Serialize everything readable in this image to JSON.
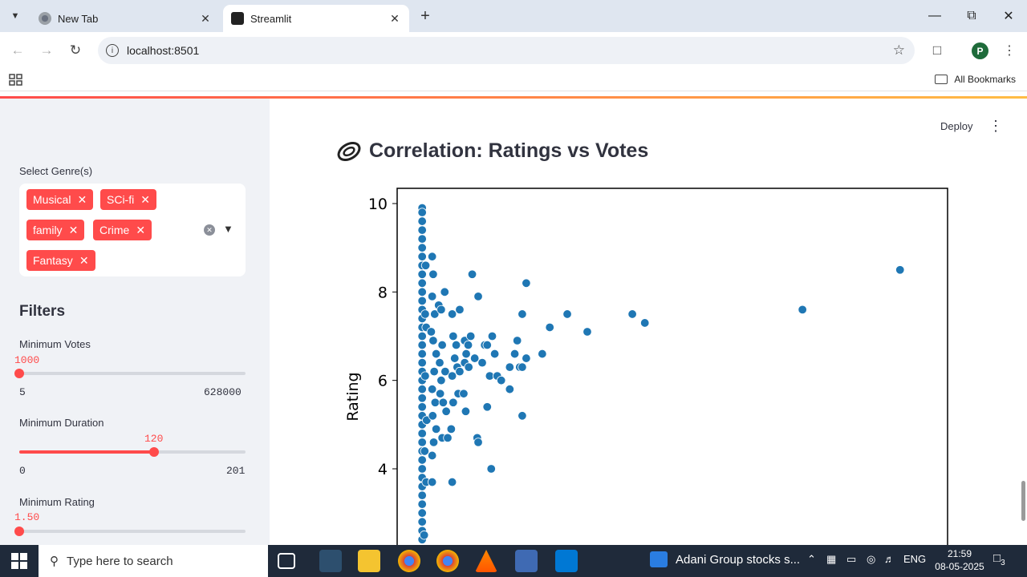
{
  "browser": {
    "tabs": [
      {
        "title": "New Tab",
        "active": false
      },
      {
        "title": "Streamlit",
        "active": true
      }
    ],
    "url": "localhost:8501",
    "profile_initial": "P",
    "bookmarks_label": "All Bookmarks"
  },
  "header": {
    "deploy_label": "Deploy",
    "title": "Correlation: Ratings vs Votes"
  },
  "sidebar": {
    "genre_label": "Select Genre(s)",
    "genres": [
      "Musical",
      "SCi-fi",
      "family",
      "Crime",
      "Fantasy"
    ],
    "filters_heading": "Filters",
    "sliders": [
      {
        "label": "Minimum Votes",
        "value": "1000",
        "min": "5",
        "max": "628000",
        "fraction": 0.0
      },
      {
        "label": "Minimum Duration",
        "value": "120",
        "min": "0",
        "max": "201",
        "fraction": 0.597
      },
      {
        "label": "Minimum Rating",
        "value": "1.50",
        "min": "",
        "max": "",
        "fraction": 0.0
      }
    ]
  },
  "chart_data": {
    "type": "scatter",
    "title": "",
    "xlabel": "",
    "ylabel": "Rating",
    "ylim": [
      2.2,
      10.3
    ],
    "xlim": [
      -0.05,
      1.05
    ],
    "yticks": [
      4,
      6,
      8,
      10
    ],
    "grid": false,
    "color": "#1f77b4",
    "points": [
      [
        0.0,
        9.9
      ],
      [
        0.0,
        9.8
      ],
      [
        0.0,
        9.6
      ],
      [
        0.0,
        9.4
      ],
      [
        0.0,
        9.2
      ],
      [
        0.0,
        9.0
      ],
      [
        0.0,
        8.8
      ],
      [
        0.0,
        8.6
      ],
      [
        0.0,
        8.4
      ],
      [
        0.0,
        8.2
      ],
      [
        0.0,
        8.0
      ],
      [
        0.0,
        7.8
      ],
      [
        0.0,
        7.6
      ],
      [
        0.0,
        7.4
      ],
      [
        0.0,
        7.2
      ],
      [
        0.0,
        7.0
      ],
      [
        0.0,
        6.8
      ],
      [
        0.0,
        6.6
      ],
      [
        0.0,
        6.4
      ],
      [
        0.0,
        6.2
      ],
      [
        0.0,
        6.0
      ],
      [
        0.0,
        5.8
      ],
      [
        0.0,
        5.6
      ],
      [
        0.0,
        5.4
      ],
      [
        0.0,
        5.2
      ],
      [
        0.0,
        5.0
      ],
      [
        0.0,
        4.8
      ],
      [
        0.0,
        4.6
      ],
      [
        0.0,
        4.4
      ],
      [
        0.0,
        4.2
      ],
      [
        0.0,
        4.0
      ],
      [
        0.0,
        3.8
      ],
      [
        0.0,
        3.6
      ],
      [
        0.0,
        3.4
      ],
      [
        0.0,
        3.2
      ],
      [
        0.0,
        3.0
      ],
      [
        0.0,
        2.8
      ],
      [
        0.0,
        2.6
      ],
      [
        0.0,
        2.4
      ],
      [
        0.007,
        8.6
      ],
      [
        0.006,
        7.5
      ],
      [
        0.008,
        7.2
      ],
      [
        0.006,
        6.1
      ],
      [
        0.009,
        5.1
      ],
      [
        0.005,
        4.4
      ],
      [
        0.008,
        3.7
      ],
      [
        0.004,
        2.5
      ],
      [
        0.02,
        8.8
      ],
      [
        0.022,
        8.4
      ],
      [
        0.02,
        7.9
      ],
      [
        0.025,
        7.5
      ],
      [
        0.018,
        7.1
      ],
      [
        0.022,
        6.9
      ],
      [
        0.028,
        6.6
      ],
      [
        0.024,
        6.2
      ],
      [
        0.02,
        5.8
      ],
      [
        0.026,
        5.5
      ],
      [
        0.021,
        5.2
      ],
      [
        0.028,
        4.9
      ],
      [
        0.023,
        4.6
      ],
      [
        0.02,
        4.3
      ],
      [
        0.02,
        3.7
      ],
      [
        0.033,
        7.7
      ],
      [
        0.038,
        7.6
      ],
      [
        0.045,
        8.0
      ],
      [
        0.04,
        6.8
      ],
      [
        0.035,
        6.4
      ],
      [
        0.046,
        6.2
      ],
      [
        0.038,
        6.0
      ],
      [
        0.036,
        5.7
      ],
      [
        0.042,
        5.5
      ],
      [
        0.048,
        5.3
      ],
      [
        0.04,
        4.7
      ],
      [
        0.051,
        4.7
      ],
      [
        0.06,
        7.5
      ],
      [
        0.062,
        7.0
      ],
      [
        0.068,
        6.8
      ],
      [
        0.065,
        6.5
      ],
      [
        0.07,
        6.3
      ],
      [
        0.075,
        6.2
      ],
      [
        0.06,
        6.1
      ],
      [
        0.062,
        5.5
      ],
      [
        0.058,
        4.9
      ],
      [
        0.06,
        3.7
      ],
      [
        0.072,
        5.7
      ],
      [
        0.083,
        5.7
      ],
      [
        0.075,
        7.6
      ],
      [
        0.085,
        6.9
      ],
      [
        0.088,
        6.6
      ],
      [
        0.085,
        6.4
      ],
      [
        0.093,
        6.3
      ],
      [
        0.087,
        5.3
      ],
      [
        0.092,
        6.8
      ],
      [
        0.097,
        7.0
      ],
      [
        0.1,
        8.4
      ],
      [
        0.112,
        7.9
      ],
      [
        0.105,
        6.5
      ],
      [
        0.11,
        4.7
      ],
      [
        0.112,
        4.6
      ],
      [
        0.12,
        6.4
      ],
      [
        0.125,
        6.8
      ],
      [
        0.13,
        6.8
      ],
      [
        0.135,
        6.1
      ],
      [
        0.13,
        5.4
      ],
      [
        0.14,
        7.0
      ],
      [
        0.145,
        6.6
      ],
      [
        0.138,
        4.0
      ],
      [
        0.15,
        6.1
      ],
      [
        0.158,
        6.0
      ],
      [
        0.175,
        6.3
      ],
      [
        0.175,
        5.8
      ],
      [
        0.185,
        6.6
      ],
      [
        0.19,
        6.9
      ],
      [
        0.195,
        6.3
      ],
      [
        0.2,
        6.3
      ],
      [
        0.2,
        7.5
      ],
      [
        0.2,
        5.2
      ],
      [
        0.208,
        8.2
      ],
      [
        0.208,
        6.5
      ],
      [
        0.24,
        6.6
      ],
      [
        0.255,
        7.2
      ],
      [
        0.29,
        7.5
      ],
      [
        0.33,
        7.1
      ],
      [
        0.42,
        7.5
      ],
      [
        0.445,
        7.3
      ],
      [
        0.76,
        7.6
      ],
      [
        0.955,
        8.5
      ]
    ]
  },
  "taskbar": {
    "search_placeholder": "Type here to search",
    "news_text": "Adani Group stocks s...",
    "lang": "ENG",
    "time": "21:59",
    "date": "08-05-2025",
    "notification_count": "3"
  }
}
